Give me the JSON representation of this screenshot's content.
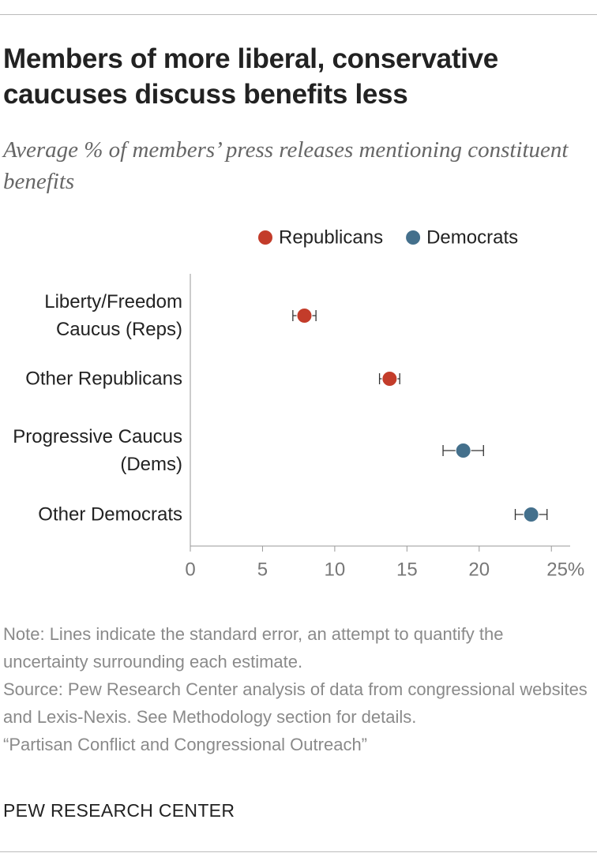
{
  "chart_data": {
    "type": "dot",
    "title": "Members of more liberal, conservative caucuses discuss benefits less",
    "subtitle": "Average % of members’ press releases mentioning constituent benefits",
    "categories": [
      "Liberty/Freedom Caucus (Reps)",
      "Other Republicans",
      "Progressive Caucus (Dems)",
      "Other Democrats"
    ],
    "series": [
      {
        "name": "Republicans",
        "color": "#c33c2a",
        "values": [
          7.9,
          13.8,
          null,
          null
        ],
        "errors": [
          0.8,
          0.7,
          null,
          null
        ]
      },
      {
        "name": "Democrats",
        "color": "#44708c",
        "values": [
          null,
          null,
          18.9,
          23.6
        ],
        "errors": [
          null,
          null,
          1.4,
          1.1
        ]
      }
    ],
    "xlim": [
      0,
      26.3
    ],
    "xticks": [
      0,
      5,
      10,
      15,
      20,
      {
        "value": 25,
        "label": "25%"
      }
    ],
    "note": "Note: Lines indicate the standard error, an attempt to quantify the uncertainty surrounding each estimate.",
    "source": "Source: Pew Research Center analysis of data from congressional websites and Lexis-Nexis. See Methodology section for details.",
    "report": "“Partisan Conflict and Congressional Outreach”",
    "brand": "PEW RESEARCH CENTER"
  }
}
